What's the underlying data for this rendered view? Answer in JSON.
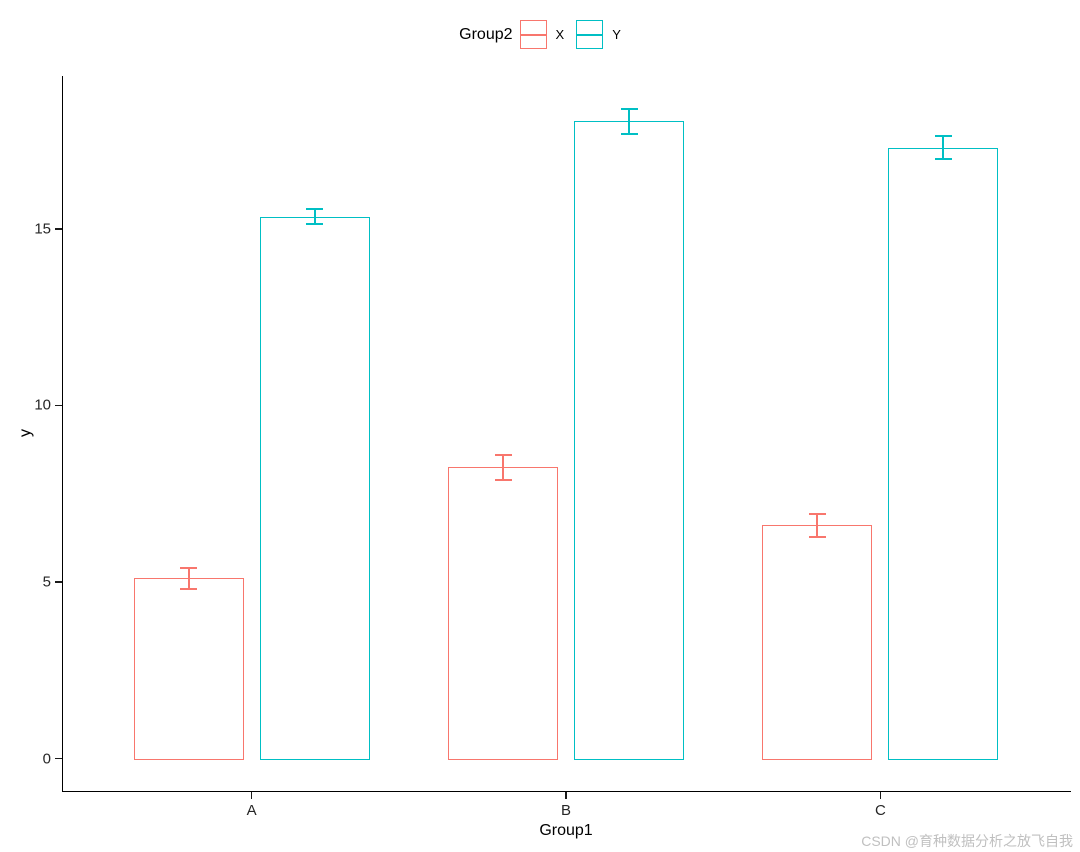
{
  "watermark": "CSDN @育种数据分析之放飞自我",
  "chart_data": {
    "type": "bar",
    "title": "",
    "legend_title": "Group2",
    "legend_position": "top",
    "categories": [
      "A",
      "B",
      "C"
    ],
    "series": [
      {
        "name": "X",
        "color": "#F8766D",
        "values": [
          5.1,
          8.25,
          6.6
        ],
        "errors": [
          0.3,
          0.35,
          0.33
        ]
      },
      {
        "name": "Y",
        "color": "#00BFC4",
        "values": [
          15.35,
          18.05,
          17.3
        ],
        "errors": [
          0.2,
          0.35,
          0.32
        ]
      }
    ],
    "xlabel": "Group1",
    "ylabel": "y",
    "yticks": [
      0,
      5,
      10,
      15
    ],
    "ylim": [
      -0.92,
      19.33
    ],
    "grid": false,
    "bar_fill": "#ffffff",
    "style": "outlined-bars-with-errorbars"
  }
}
